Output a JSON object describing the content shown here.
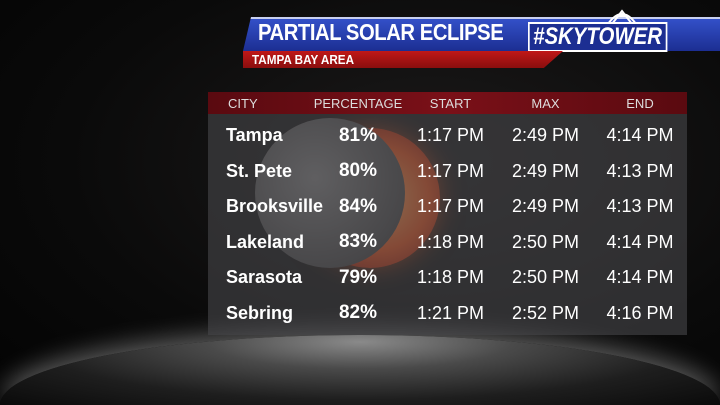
{
  "header": {
    "title": "PARTIAL SOLAR ECLIPSE",
    "brand": "#SKYTOWER",
    "subtitle": "TAMPA BAY AREA"
  },
  "table": {
    "columns": [
      "CITY",
      "PERCENTAGE",
      "START",
      "MAX",
      "END"
    ],
    "rows": [
      [
        "Tampa",
        "81%",
        "1:17 PM",
        "2:49 PM",
        "4:14 PM"
      ],
      [
        "St. Pete",
        "80%",
        "1:17 PM",
        "2:49 PM",
        "4:13 PM"
      ],
      [
        "Brooksville",
        "84%",
        "1:17 PM",
        "2:49 PM",
        "4:13 PM"
      ],
      [
        "Lakeland",
        "83%",
        "1:18 PM",
        "2:50 PM",
        "4:14 PM"
      ],
      [
        "Sarasota",
        "79%",
        "1:18 PM",
        "2:50 PM",
        "4:14 PM"
      ],
      [
        "Sebring",
        "82%",
        "1:21 PM",
        "2:52 PM",
        "4:16 PM"
      ]
    ]
  },
  "colors": {
    "title_blue": "#1c2e92",
    "subtitle_red": "#c01818",
    "header_row": "#7a1018"
  }
}
